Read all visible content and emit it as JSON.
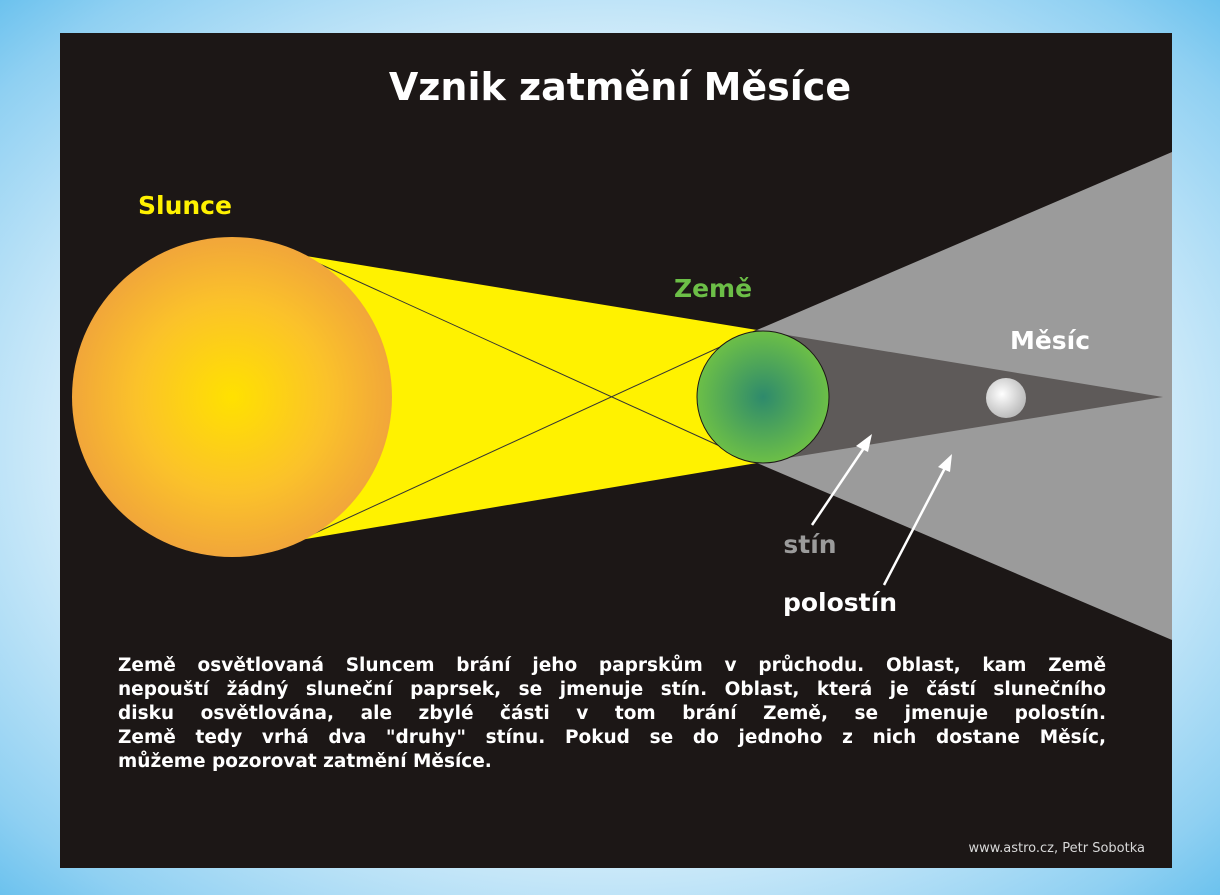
{
  "title": "Vznik zatmění Měsíce",
  "labels": {
    "sun": "Slunce",
    "earth": "Země",
    "moon": "Měsíc",
    "umbra": "stín",
    "penumbra": "polostín"
  },
  "description": [
    "Země osvětlovaná Sluncem brání jeho paprskům v průchodu. Oblast, kam Země",
    "nepouští žádný sluneční paprsek, se jmenuje stín. Oblast, která je částí slunečního",
    "disku osvětlována, ale zbylé části v tom brání Země, se jmenuje polostín.",
    "Země tedy vrhá dva \"druhy\" stínu. Pokud se do jednoho z nich dostane Měsíc,",
    "můžeme pozorovat zatmění Měsíce."
  ],
  "credit": "www.astro.cz, Petr Sobotka"
}
